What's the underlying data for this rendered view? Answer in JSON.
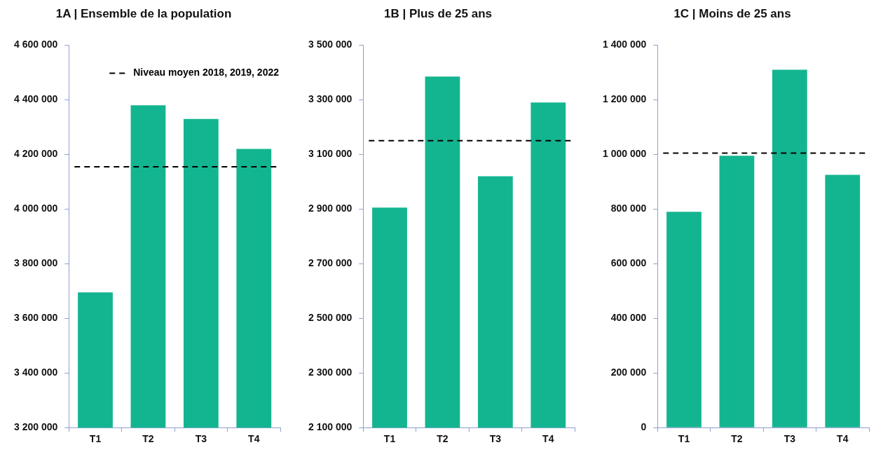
{
  "chart_data": [
    {
      "type": "bar",
      "title": "1A | Ensemble de la population",
      "categories": [
        "T1",
        "T2",
        "T3",
        "T4"
      ],
      "values": [
        3695000,
        4380000,
        4330000,
        4220000
      ],
      "color": "#13b590",
      "ylim": [
        3200000,
        4600000
      ],
      "yticks": [
        {
          "value": 3200000,
          "label": "3 200 000"
        },
        {
          "value": 3400000,
          "label": "3 400 000"
        },
        {
          "value": 3600000,
          "label": "3 600 000"
        },
        {
          "value": 3800000,
          "label": "3 800 000"
        },
        {
          "value": 4000000,
          "label": "4 000 000"
        },
        {
          "value": 4200000,
          "label": "4 200 000"
        },
        {
          "value": 4400000,
          "label": "4 400 000"
        },
        {
          "value": 4600000,
          "label": "4 600 000"
        }
      ],
      "ref_lines": [
        {
          "axis": "y",
          "value": 4155000,
          "label": "Niveau moyen 2018, 2019, 2022",
          "color": "#000000",
          "line_style": "dashed"
        }
      ],
      "legend": "top right",
      "grid": false
    },
    {
      "type": "bar",
      "title": "1B | Plus de 25 ans",
      "categories": [
        "T1",
        "T2",
        "T3",
        "T4"
      ],
      "values": [
        2905000,
        3385000,
        3020000,
        3290000
      ],
      "color": "#13b590",
      "ylim": [
        2100000,
        3500000
      ],
      "yticks": [
        {
          "value": 2100000,
          "label": "2 100 000"
        },
        {
          "value": 2300000,
          "label": "2 300 000"
        },
        {
          "value": 2500000,
          "label": "2 500 000"
        },
        {
          "value": 2700000,
          "label": "2 700 000"
        },
        {
          "value": 2900000,
          "label": "2 900 000"
        },
        {
          "value": 3100000,
          "label": "3 100 000"
        },
        {
          "value": 3300000,
          "label": "3 300 000"
        },
        {
          "value": 3500000,
          "label": "3 500 000"
        }
      ],
      "ref_lines": [
        {
          "axis": "y",
          "value": 3150000,
          "color": "#000000",
          "line_style": "dashed"
        }
      ],
      "grid": false
    },
    {
      "type": "bar",
      "title": "1C | Moins de 25 ans",
      "categories": [
        "T1",
        "T2",
        "T3",
        "T4"
      ],
      "values": [
        790000,
        995000,
        1310000,
        925000
      ],
      "color": "#13b590",
      "ylim": [
        0,
        1400000
      ],
      "yticks": [
        0,
        {
          "value": 200000,
          "label": "200 000"
        },
        {
          "value": 400000,
          "label": "400 000"
        },
        {
          "value": 600000,
          "label": "600 000"
        },
        {
          "value": 800000,
          "label": "800 000"
        },
        {
          "value": 1000000,
          "label": "1 000 000"
        },
        {
          "value": 1200000,
          "label": "1 200 000"
        },
        {
          "value": 1400000,
          "label": "1 400 000"
        }
      ],
      "ref_lines": [
        {
          "axis": "y",
          "value": 1005000,
          "color": "#000000",
          "line_style": "dashed"
        }
      ],
      "grid": false
    }
  ]
}
